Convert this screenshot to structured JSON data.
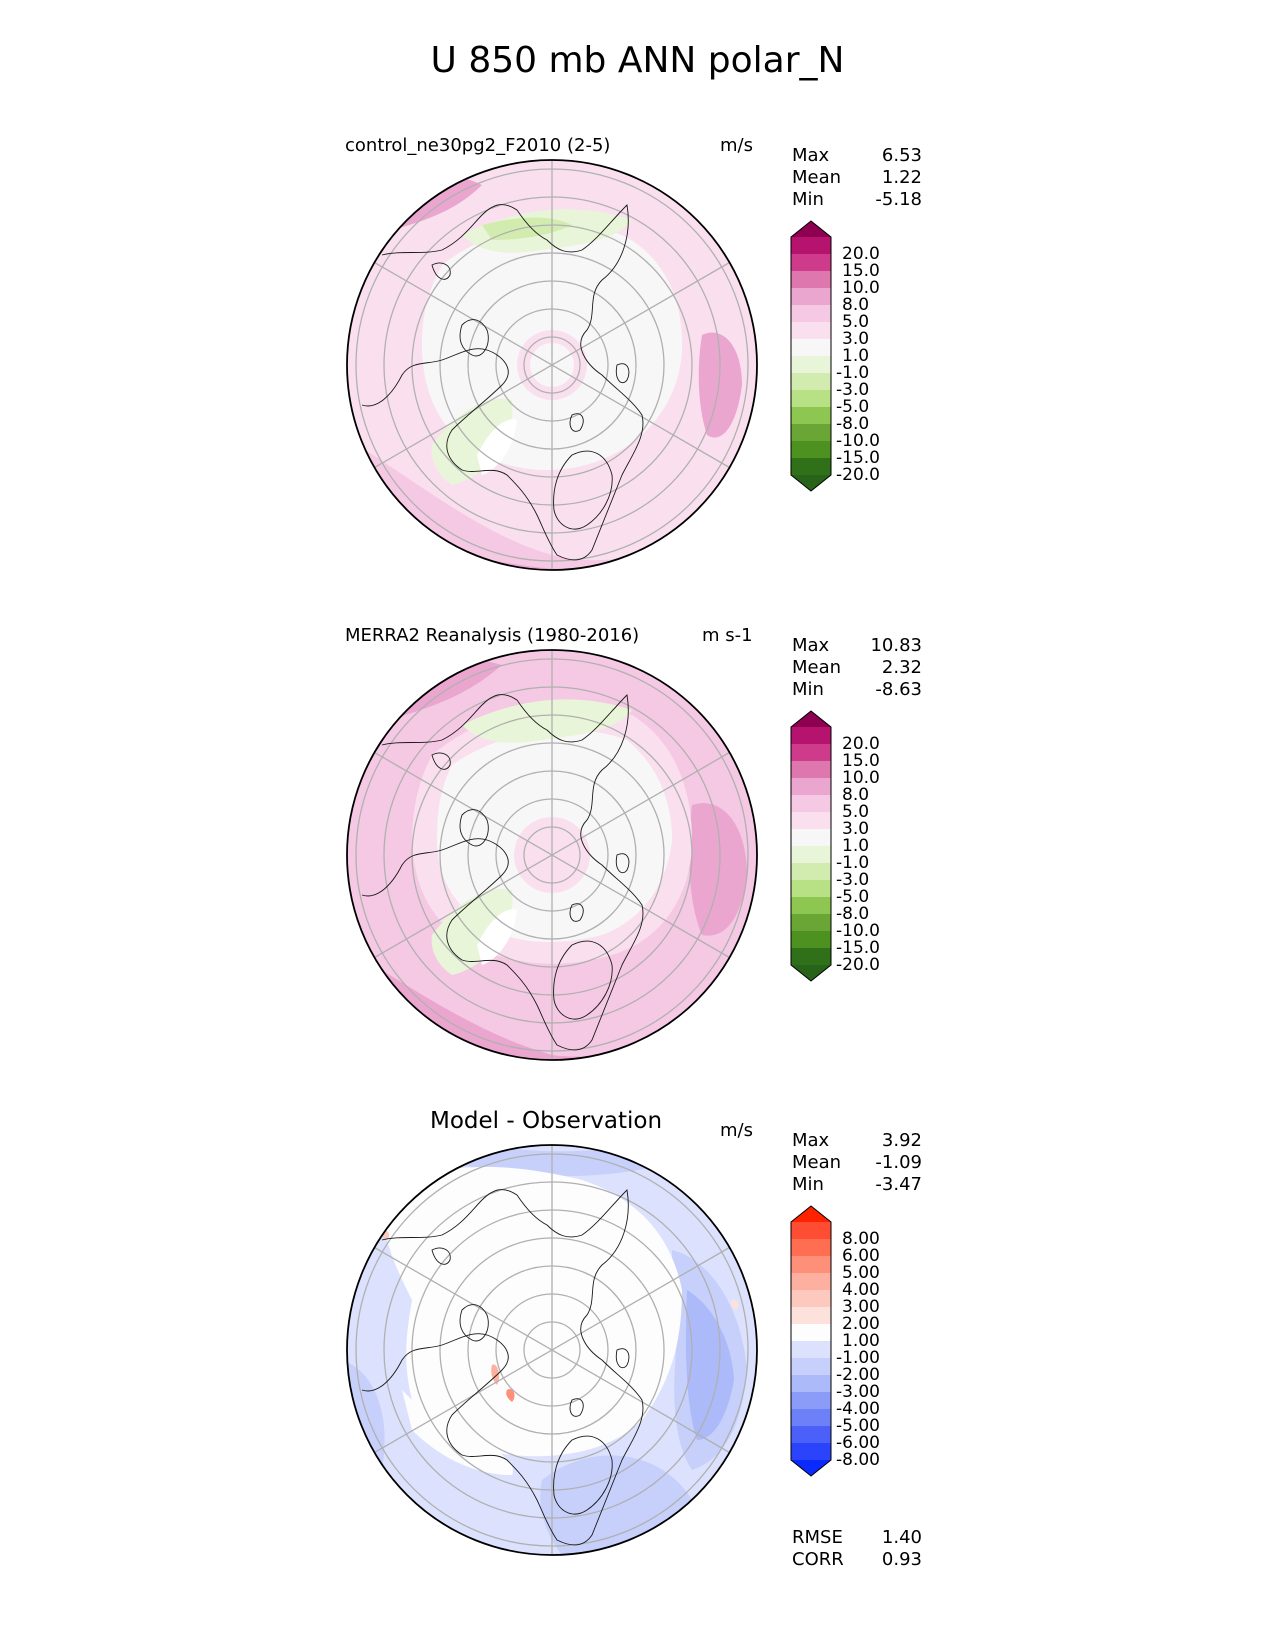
{
  "figure": {
    "title": "U 850 mb ANN polar_N"
  },
  "panels": [
    {
      "title": "control_ne30pg2_F2010 (2-5)",
      "units": "m/s",
      "stats": [
        {
          "label": "Max",
          "value": "6.53"
        },
        {
          "label": "Mean",
          "value": "1.22"
        },
        {
          "label": "Min",
          "value": "-5.18"
        }
      ],
      "colorbar": {
        "labels": [
          "20.0",
          "15.0",
          "10.0",
          "8.0",
          "5.0",
          "3.0",
          "1.0",
          "-1.0",
          "-3.0",
          "-5.0",
          "-8.0",
          "-10.0",
          "-15.0",
          "-20.0"
        ],
        "colors": [
          "#8e0152",
          "#b5136e",
          "#cd3b8a",
          "#de77ae",
          "#eba6cf",
          "#f5c9e3",
          "#fae0ef",
          "#f7f7f7",
          "#e9f5d8",
          "#d2ecaf",
          "#b8e186",
          "#8ec652",
          "#6aa636",
          "#4d9221",
          "#2f7019",
          "#276419"
        ]
      }
    },
    {
      "title": "MERRA2 Reanalysis (1980-2016)",
      "units": "m s-1",
      "stats": [
        {
          "label": "Max",
          "value": "10.83"
        },
        {
          "label": "Mean",
          "value": "2.32"
        },
        {
          "label": "Min",
          "value": "-8.63"
        }
      ],
      "colorbar": {
        "labels": [
          "20.0",
          "15.0",
          "10.0",
          "8.0",
          "5.0",
          "3.0",
          "1.0",
          "-1.0",
          "-3.0",
          "-5.0",
          "-8.0",
          "-10.0",
          "-15.0",
          "-20.0"
        ],
        "colors": [
          "#8e0152",
          "#b5136e",
          "#cd3b8a",
          "#de77ae",
          "#eba6cf",
          "#f5c9e3",
          "#fae0ef",
          "#f7f7f7",
          "#e9f5d8",
          "#d2ecaf",
          "#b8e186",
          "#8ec652",
          "#6aa636",
          "#4d9221",
          "#2f7019",
          "#276419"
        ]
      }
    },
    {
      "title": "Model - Observation",
      "units": "m/s",
      "stats": [
        {
          "label": "Max",
          "value": "3.92"
        },
        {
          "label": "Mean",
          "value": "-1.09"
        },
        {
          "label": "Min",
          "value": "-3.47"
        }
      ],
      "colorbar": {
        "labels": [
          "8.00",
          "6.00",
          "5.00",
          "4.00",
          "3.00",
          "2.00",
          "1.00",
          "-1.00",
          "-2.00",
          "-3.00",
          "-4.00",
          "-5.00",
          "-6.00",
          "-8.00"
        ],
        "colors": [
          "#ff2200",
          "#ff4d33",
          "#ff6e50",
          "#fe8f78",
          "#fdb0a0",
          "#fdc9bf",
          "#fde2dc",
          "#fdfdfd",
          "#dce2fd",
          "#c6d0fb",
          "#adbaf9",
          "#8b9bf8",
          "#6c80f8",
          "#4a60f9",
          "#2b43fa",
          "#0a2afe"
        ]
      },
      "metrics": [
        {
          "label": "RMSE",
          "value": "1.40"
        },
        {
          "label": "CORR",
          "value": "0.93"
        }
      ]
    }
  ]
}
